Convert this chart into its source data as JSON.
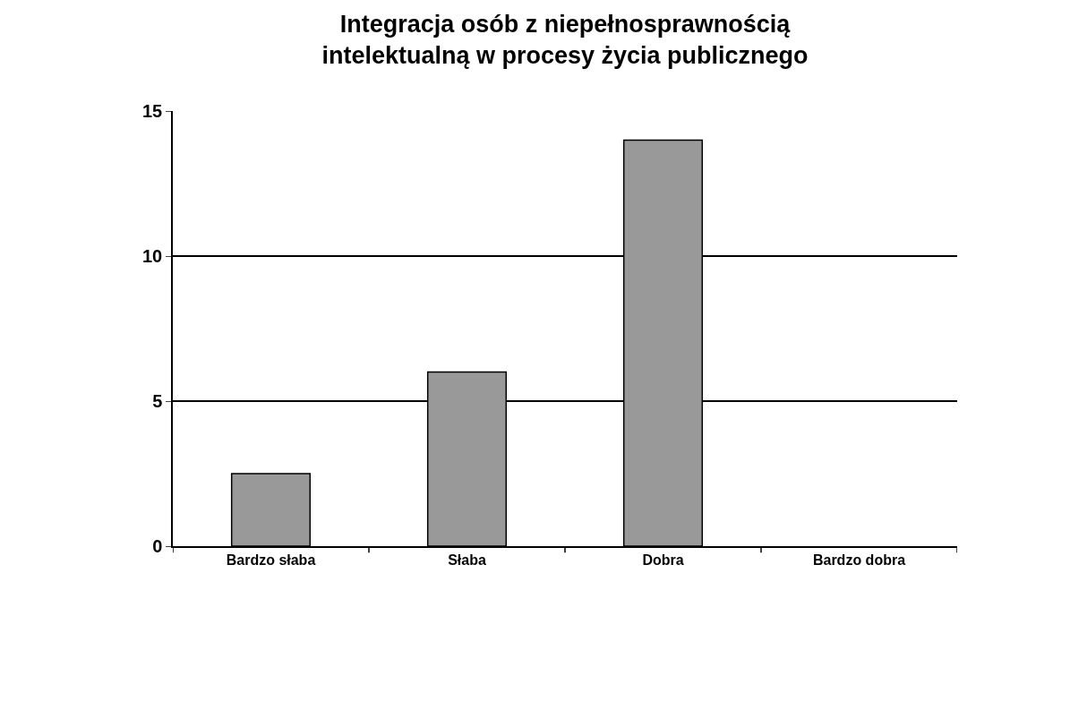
{
  "chart_data": {
    "type": "bar",
    "title": "Integracja osób z niepełnosprawnością\nintelektualną w procesy życia publicznego",
    "categories": [
      "Bardzo słaba",
      "Słaba",
      "Dobra",
      "Bardzo dobra"
    ],
    "values": [
      2.5,
      6,
      14,
      0
    ],
    "color": "#999999",
    "ylim": [
      0,
      15
    ],
    "yticks": [
      0,
      5,
      10,
      15
    ],
    "grid": "y",
    "legend": false
  }
}
